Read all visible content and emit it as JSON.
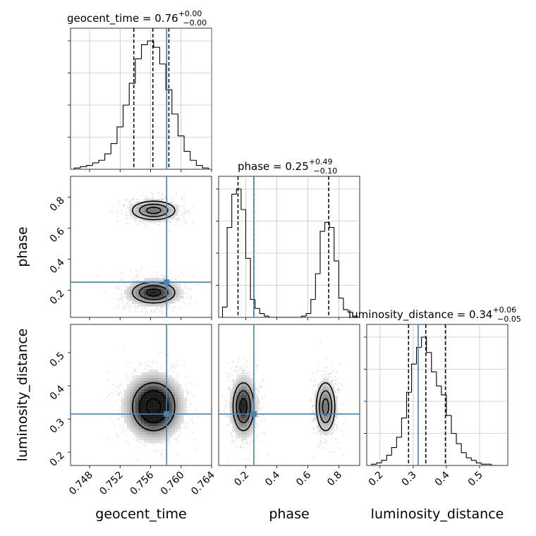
{
  "chart_data": {
    "type": "corner",
    "parameters": [
      "geocent_time",
      "phase",
      "luminosity_distance"
    ],
    "axis_labels": {
      "geocent_time": "geocent_time",
      "phase": "phase",
      "luminosity_distance": "luminosity_distance"
    },
    "injection_color": "#4682b4",
    "truths": {
      "geocent_time": 0.7581,
      "phase": 0.252,
      "luminosity_distance": 0.315
    },
    "ranges": {
      "geocent_time": [
        0.7455,
        0.764
      ],
      "phase": [
        0.025,
        0.935
      ],
      "luminosity_distance": [
        0.16,
        0.585
      ]
    },
    "ticks": {
      "geocent_time": [
        "0.748",
        "0.752",
        "0.756",
        "0.760",
        "0.764"
      ],
      "phase": [
        "0.2",
        "0.4",
        "0.6",
        "0.8"
      ],
      "luminosity_distance": [
        "0.2",
        "0.3",
        "0.4",
        "0.5"
      ]
    },
    "titles": [
      {
        "name": "geocent_time",
        "label": "geocent_time = 0.76",
        "plus": "+0.00",
        "minus": "−0.00"
      },
      {
        "name": "phase",
        "label": "phase = 0.25",
        "plus": "+0.49",
        "minus": "−0.10"
      },
      {
        "name": "luminosity_distance",
        "label": "luminosity_distance = 0.34",
        "plus": "+0.06",
        "minus": "−0.05"
      }
    ],
    "histograms": {
      "geocent_time": {
        "bins": [
          0.746,
          0.7468,
          0.7476,
          0.7484,
          0.7492,
          0.75,
          0.7508,
          0.7516,
          0.7524,
          0.7532,
          0.754,
          0.7548,
          0.7556,
          0.7564,
          0.7572,
          0.758,
          0.7588,
          0.7596,
          0.7604,
          0.7612,
          0.762,
          0.7628,
          0.7636
        ],
        "counts": [
          1,
          2,
          3,
          5,
          7,
          12,
          20,
          33,
          50,
          67,
          86,
          97,
          100,
          95,
          82,
          62,
          43,
          26,
          14,
          7,
          3,
          1
        ]
      },
      "phase": {
        "bins": [
          0.05,
          0.08,
          0.11,
          0.14,
          0.17,
          0.2,
          0.23,
          0.26,
          0.29,
          0.32,
          0.35,
          0.38,
          0.41,
          0.44,
          0.47,
          0.5,
          0.53,
          0.56,
          0.59,
          0.62,
          0.65,
          0.68,
          0.71,
          0.74,
          0.77,
          0.8,
          0.83,
          0.86,
          0.89,
          0.92
        ],
        "counts": [
          8,
          70,
          96,
          100,
          84,
          46,
          14,
          7,
          3,
          1,
          0,
          0,
          0,
          0,
          0,
          0,
          0,
          1,
          3,
          14,
          34,
          67,
          74,
          70,
          44,
          15,
          6,
          4,
          1
        ]
      },
      "luminosity_distance": {
        "bins": [
          0.175,
          0.19,
          0.205,
          0.22,
          0.235,
          0.25,
          0.265,
          0.28,
          0.295,
          0.31,
          0.325,
          0.34,
          0.355,
          0.37,
          0.385,
          0.4,
          0.415,
          0.43,
          0.445,
          0.46,
          0.475,
          0.49,
          0.505,
          0.52,
          0.535,
          0.55
        ],
        "counts": [
          1,
          2,
          4,
          8,
          14,
          22,
          37,
          57,
          79,
          92,
          100,
          88,
          73,
          62,
          55,
          39,
          25,
          17,
          10,
          6,
          4,
          2,
          1,
          1,
          0
        ]
      }
    },
    "quantile_lines": {
      "geocent_time": [
        0.7538,
        0.7563,
        0.7584
      ],
      "phase": [
        0.15,
        0.252,
        0.735
      ],
      "luminosity_distance": [
        0.286,
        0.338,
        0.397
      ]
    },
    "modes": [
      {
        "geocent_time": 0.7564,
        "phase": 0.185,
        "luminosity_distance": 0.337,
        "sd_geocent_time": 0.00185,
        "sd_phase": 0.045,
        "sd_luminosity_distance": 0.048,
        "weight": 0.62
      },
      {
        "geocent_time": 0.7564,
        "phase": 0.715,
        "luminosity_distance": 0.337,
        "sd_geocent_time": 0.00185,
        "sd_phase": 0.04,
        "sd_luminosity_distance": 0.048,
        "weight": 0.38
      }
    ]
  }
}
